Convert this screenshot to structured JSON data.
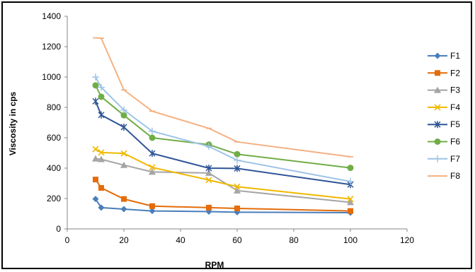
{
  "chart_data": {
    "type": "line",
    "xlabel": "RPM",
    "ylabel": "Viscosity in cps",
    "xlim": [
      0,
      120
    ],
    "ylim": [
      0,
      1400
    ],
    "xticks": [
      0,
      20,
      40,
      60,
      80,
      100,
      120
    ],
    "yticks": [
      0,
      200,
      400,
      600,
      800,
      1000,
      1200,
      1400
    ],
    "grid": false,
    "legend_position": "right",
    "series": [
      {
        "name": "F1",
        "color": "#4a7ebb",
        "marker": "diamond",
        "x": [
          10,
          12,
          20,
          30,
          50,
          60,
          100
        ],
        "y": [
          197,
          140,
          130,
          118,
          114,
          110,
          107
        ]
      },
      {
        "name": "F2",
        "color": "#e46c0a",
        "marker": "square",
        "x": [
          10,
          12,
          20,
          30,
          50,
          60,
          100
        ],
        "y": [
          325,
          270,
          197,
          150,
          140,
          135,
          118
        ]
      },
      {
        "name": "F3",
        "color": "#a5a5a5",
        "marker": "triangle",
        "x": [
          10,
          12,
          20,
          30,
          50,
          60,
          100
        ],
        "y": [
          462,
          458,
          420,
          375,
          368,
          252,
          175
        ]
      },
      {
        "name": "F4",
        "color": "#f0b800",
        "marker": "x",
        "x": [
          10,
          12,
          20,
          30,
          50,
          60,
          100
        ],
        "y": [
          525,
          503,
          497,
          405,
          322,
          278,
          197
        ]
      },
      {
        "name": "F5",
        "color": "#2f5597",
        "marker": "star",
        "x": [
          10,
          12,
          20,
          30,
          50,
          60,
          100
        ],
        "y": [
          840,
          750,
          670,
          497,
          400,
          398,
          292
        ]
      },
      {
        "name": "F6",
        "color": "#70ad47",
        "marker": "circle",
        "x": [
          10,
          12,
          20,
          30,
          50,
          60,
          100
        ],
        "y": [
          945,
          870,
          748,
          600,
          555,
          492,
          402
        ]
      },
      {
        "name": "F7",
        "color": "#9dc3e6",
        "marker": "plus",
        "x": [
          10,
          12,
          20,
          30,
          50,
          60,
          100
        ],
        "y": [
          1000,
          932,
          783,
          643,
          543,
          452,
          312
        ]
      },
      {
        "name": "F8",
        "color": "#f4b183",
        "marker": "dash",
        "x": [
          10,
          12,
          20,
          30,
          50,
          60,
          100
        ],
        "y": [
          1258,
          1255,
          915,
          775,
          662,
          573,
          475
        ]
      }
    ]
  }
}
